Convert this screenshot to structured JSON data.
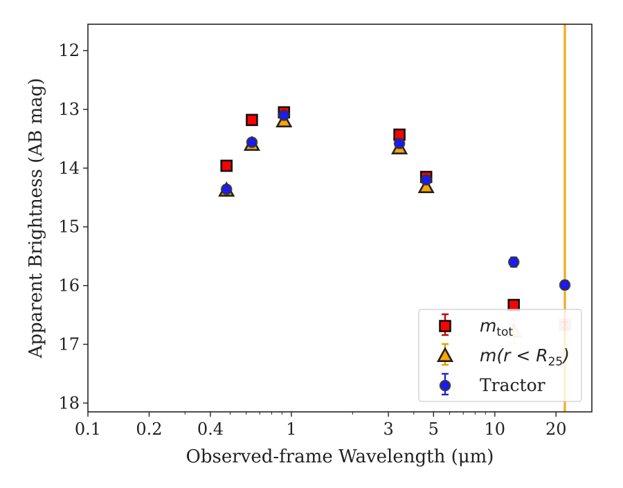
{
  "chart_data": {
    "type": "scatter",
    "title": "",
    "xlabel": "Observed-frame Wavelength (μm)",
    "ylabel": "Apparent Brightness (AB mag)",
    "xscale": "log",
    "xlim": [
      0.1,
      30
    ],
    "ylim": [
      18.15,
      11.55
    ],
    "y_inverted": true,
    "x_ticks": [
      0.1,
      0.2,
      0.4,
      1,
      3,
      5,
      10,
      20
    ],
    "x_tick_labels": [
      "0.1",
      "0.2",
      "0.4",
      "1",
      "3",
      "5",
      "10",
      "20"
    ],
    "y_ticks": [
      12,
      13,
      14,
      15,
      16,
      17,
      18
    ],
    "y_tick_labels": [
      "12",
      "13",
      "14",
      "15",
      "16",
      "17",
      "18"
    ],
    "grid": false,
    "legend_position": "lower-right",
    "vline": {
      "x": 22.1,
      "color": "#f5a81c"
    },
    "series": [
      {
        "name": "m_tot",
        "legend_main": "m",
        "legend_sub": "tot",
        "marker": "square",
        "face": "#ff0000",
        "edge": "#111111",
        "err_color": "#cc0000",
        "points": [
          {
            "x": 0.48,
            "y": 13.96,
            "err": 0.05
          },
          {
            "x": 0.64,
            "y": 13.18,
            "err": 0.05
          },
          {
            "x": 0.92,
            "y": 13.05,
            "err": 0.05
          },
          {
            "x": 3.4,
            "y": 13.43,
            "err": 0.05
          },
          {
            "x": 4.6,
            "y": 14.15,
            "err": 0.05
          },
          {
            "x": 12.4,
            "y": 16.33,
            "err": 0.05
          },
          {
            "x": 22.1,
            "y": 16.67,
            "err": 0.05,
            "faded": true
          }
        ]
      },
      {
        "name": "m(r < R_25)",
        "legend_main": "m(r < R",
        "legend_sub": "25",
        "legend_close": ")",
        "marker": "triangle",
        "face": "#ffa500",
        "edge": "#222222",
        "err_color": "#e89c00",
        "points": [
          {
            "x": 0.48,
            "y": 14.38,
            "err": 0.05
          },
          {
            "x": 0.64,
            "y": 13.6,
            "err": 0.05
          },
          {
            "x": 0.92,
            "y": 13.2,
            "err": 0.05
          },
          {
            "x": 3.4,
            "y": 13.66,
            "err": 0.05
          },
          {
            "x": 4.6,
            "y": 14.32,
            "err": 0.05
          },
          {
            "x": 12.4,
            "y": 16.78,
            "err": 0.2,
            "faded": true
          }
        ]
      },
      {
        "name": "Tractor",
        "marker": "circle",
        "face": "#1a1aff",
        "edge": "#333333",
        "err_color": "#2222dd",
        "points": [
          {
            "x": 0.48,
            "y": 14.36,
            "err": 0.06
          },
          {
            "x": 0.64,
            "y": 13.56,
            "err": 0.06
          },
          {
            "x": 0.92,
            "y": 13.1,
            "err": 0.05
          },
          {
            "x": 3.4,
            "y": 13.58,
            "err": 0.06
          },
          {
            "x": 4.6,
            "y": 14.2,
            "err": 0.06
          },
          {
            "x": 12.4,
            "y": 15.6,
            "err": 0.08
          },
          {
            "x": 22.1,
            "y": 15.99,
            "err": 0.07
          }
        ]
      }
    ]
  }
}
